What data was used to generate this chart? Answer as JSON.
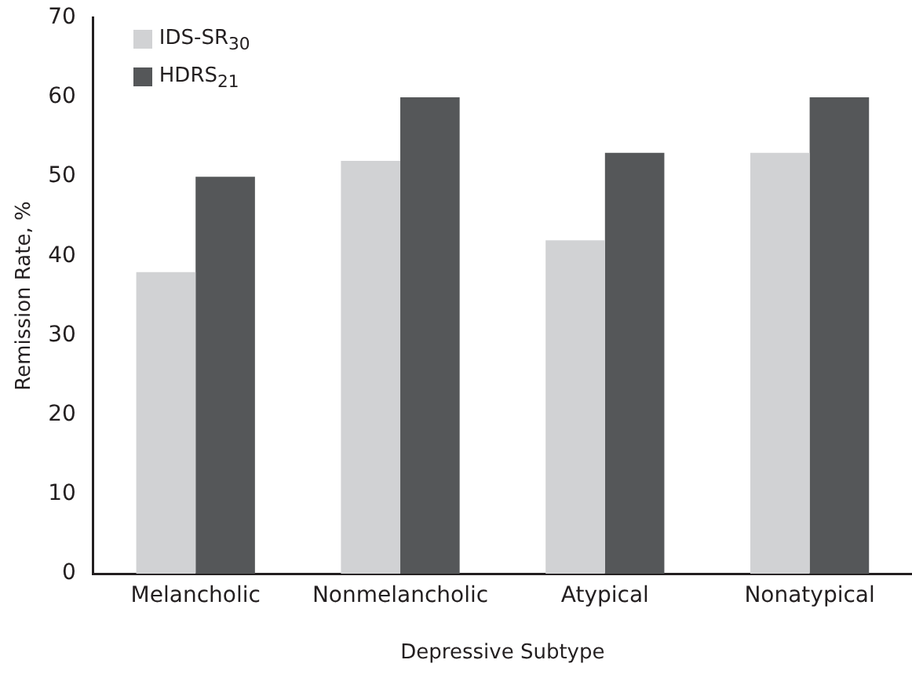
{
  "chart_data": {
    "type": "bar",
    "xlabel": "Depressive Subtype",
    "ylabel": "Remission Rate, %",
    "categories": [
      "Melancholic",
      "Nonmelancholic",
      "Atypical",
      "Nonatypical"
    ],
    "series": [
      {
        "name": "IDS-SR$_{30}$",
        "color": "#d1d2d4",
        "values": [
          38,
          52,
          42,
          53
        ]
      },
      {
        "name": "HDRS$_{21}$",
        "color": "#555759",
        "values": [
          50,
          60,
          53,
          60
        ]
      }
    ],
    "ylim": [
      0,
      70
    ],
    "yticks": [
      0,
      10,
      20,
      30,
      40,
      50,
      60,
      70
    ],
    "grid": false,
    "legend": "top left"
  }
}
